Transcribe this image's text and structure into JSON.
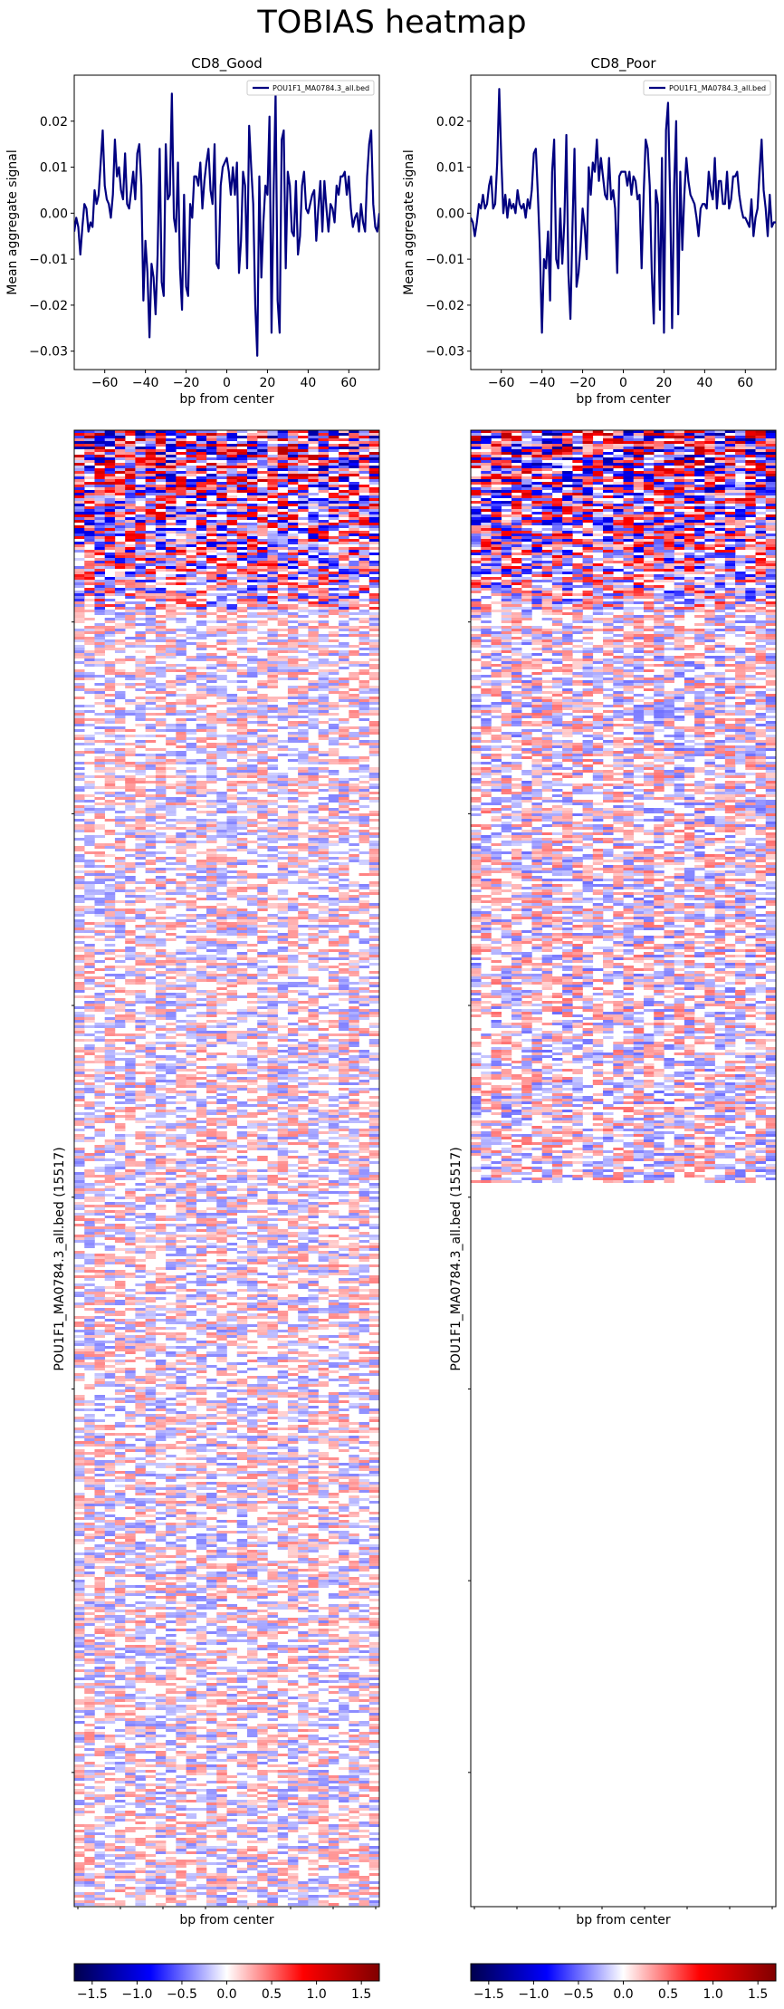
{
  "figure": {
    "title": "TOBIAS heatmap"
  },
  "chart_data": [
    {
      "type": "line",
      "title": "CD8_Good",
      "xlabel": "bp from center",
      "ylabel": "Mean aggregate signal",
      "xlim": [
        -75,
        75
      ],
      "ylim": [
        -0.034,
        0.03
      ],
      "xticks": [
        -60,
        -40,
        -20,
        0,
        20,
        40,
        60
      ],
      "yticks": [
        -0.03,
        -0.02,
        -0.01,
        0.0,
        0.01,
        0.02
      ],
      "ytick_labels": [
        "−0.03",
        "−0.02",
        "−0.01",
        "0.00",
        "0.01",
        "0.02"
      ],
      "xtick_labels": [
        "−60",
        "−40",
        "−20",
        "0",
        "20",
        "40",
        "60"
      ],
      "legend": "top-right",
      "series": [
        {
          "name": "POU1F1_MA0784.3_all.bed",
          "color": "#000080",
          "x": [
            -75,
            -74,
            -73,
            -72,
            -71,
            -70,
            -69,
            -68,
            -67,
            -66,
            -65,
            -64,
            -63,
            -62,
            -61,
            -60,
            -59,
            -58,
            -57,
            -56,
            -55,
            -54,
            -53,
            -52,
            -51,
            -50,
            -49,
            -48,
            -47,
            -46,
            -45,
            -44,
            -43,
            -42,
            -41,
            -40,
            -39,
            -38,
            -37,
            -36,
            -35,
            -34,
            -33,
            -32,
            -31,
            -30,
            -29,
            -28,
            -27,
            -26,
            -25,
            -24,
            -23,
            -22,
            -21,
            -20,
            -19,
            -18,
            -17,
            -16,
            -15,
            -14,
            -13,
            -12,
            -11,
            -10,
            -9,
            -8,
            -7,
            -6,
            -5,
            -4,
            -3,
            -2,
            -1,
            0,
            1,
            2,
            3,
            4,
            5,
            6,
            7,
            8,
            9,
            10,
            11,
            12,
            13,
            14,
            15,
            16,
            17,
            18,
            19,
            20,
            21,
            22,
            23,
            24,
            25,
            26,
            27,
            28,
            29,
            30,
            31,
            32,
            33,
            34,
            35,
            36,
            37,
            38,
            39,
            40,
            41,
            42,
            43,
            44,
            45,
            46,
            47,
            48,
            49,
            50,
            51,
            52,
            53,
            54,
            55,
            56,
            57,
            58,
            59,
            60,
            61,
            62,
            63,
            64,
            65,
            66,
            67,
            68,
            69,
            70,
            71,
            72,
            73,
            74,
            75
          ],
          "y": [
            -0.004,
            -0.001,
            -0.003,
            -0.009,
            -0.003,
            0.002,
            0.001,
            -0.004,
            -0.002,
            -0.003,
            0.005,
            0.002,
            0.004,
            0.011,
            0.018,
            0.006,
            0.003,
            0.002,
            -0.001,
            0.004,
            0.016,
            0.008,
            0.01,
            0.005,
            0.003,
            0.013,
            0.002,
            0.001,
            0.005,
            0.009,
            0.003,
            0.013,
            0.015,
            0.006,
            -0.019,
            -0.006,
            -0.013,
            -0.027,
            -0.011,
            -0.014,
            -0.022,
            -0.009,
            0.014,
            -0.015,
            -0.018,
            0.015,
            0.003,
            0.004,
            0.026,
            -0.001,
            -0.004,
            0.011,
            -0.012,
            -0.021,
            0.004,
            -0.016,
            -0.018,
            0.002,
            -0.001,
            0.008,
            0.008,
            0.006,
            0.011,
            0.001,
            0.007,
            0.011,
            0.014,
            0.005,
            0.002,
            0.015,
            -0.011,
            -0.012,
            0.006,
            0.01,
            0.011,
            0.012,
            0.009,
            0.004,
            0.01,
            0.004,
            0.011,
            -0.013,
            -0.006,
            0.009,
            0.006,
            -0.012,
            0.019,
            0.01,
            0.002,
            -0.02,
            -0.031,
            0.008,
            -0.014,
            -0.002,
            0.006,
            0.004,
            0.021,
            -0.026,
            0.004,
            0.026,
            -0.019,
            -0.026,
            0.016,
            0.018,
            -0.012,
            0.009,
            0.006,
            -0.004,
            -0.005,
            0.007,
            -0.009,
            -0.005,
            0.006,
            0.009,
            0.001,
            0.0,
            0.002,
            0.004,
            0.005,
            -0.006,
            0.001,
            0.007,
            -0.004,
            0.007,
            0.001,
            -0.004,
            0.002,
            0.001,
            -0.002,
            0.006,
            0.004,
            0.008,
            0.008,
            0.009,
            0.004,
            0.008,
            0.001,
            -0.003,
            -0.001,
            0.0,
            -0.004,
            0.002,
            -0.002,
            -0.004,
            0.008,
            0.015,
            0.018,
            0.002,
            -0.003,
            -0.004,
            0.0
          ]
        }
      ]
    },
    {
      "type": "line",
      "title": "CD8_Poor",
      "xlabel": "bp from center",
      "ylabel": "Mean aggregate signal",
      "xlim": [
        -75,
        75
      ],
      "ylim": [
        -0.034,
        0.03
      ],
      "xticks": [
        -60,
        -40,
        -20,
        0,
        20,
        40,
        60
      ],
      "yticks": [
        -0.03,
        -0.02,
        -0.01,
        0.0,
        0.01,
        0.02
      ],
      "ytick_labels": [
        "−0.03",
        "−0.02",
        "−0.01",
        "0.00",
        "0.01",
        "0.02"
      ],
      "xtick_labels": [
        "−60",
        "−40",
        "−20",
        "0",
        "20",
        "40",
        "60"
      ],
      "legend": "top-right",
      "series": [
        {
          "name": "POU1F1_MA0784.3_all.bed",
          "color": "#000080",
          "x": [
            -75,
            -74,
            -73,
            -72,
            -71,
            -70,
            -69,
            -68,
            -67,
            -66,
            -65,
            -64,
            -63,
            -62,
            -61,
            -60,
            -59,
            -58,
            -57,
            -56,
            -55,
            -54,
            -53,
            -52,
            -51,
            -50,
            -49,
            -48,
            -47,
            -46,
            -45,
            -44,
            -43,
            -42,
            -41,
            -40,
            -39,
            -38,
            -37,
            -36,
            -35,
            -34,
            -33,
            -32,
            -31,
            -30,
            -29,
            -28,
            -27,
            -26,
            -25,
            -24,
            -23,
            -22,
            -21,
            -20,
            -19,
            -18,
            -17,
            -16,
            -15,
            -14,
            -13,
            -12,
            -11,
            -10,
            -9,
            -8,
            -7,
            -6,
            -5,
            -4,
            -3,
            -2,
            -1,
            0,
            1,
            2,
            3,
            4,
            5,
            6,
            7,
            8,
            9,
            10,
            11,
            12,
            13,
            14,
            15,
            16,
            17,
            18,
            19,
            20,
            21,
            22,
            23,
            24,
            25,
            26,
            27,
            28,
            29,
            30,
            31,
            32,
            33,
            34,
            35,
            36,
            37,
            38,
            39,
            40,
            41,
            42,
            43,
            44,
            45,
            46,
            47,
            48,
            49,
            50,
            51,
            52,
            53,
            54,
            55,
            56,
            57,
            58,
            59,
            60,
            61,
            62,
            63,
            64,
            65,
            66,
            67,
            68,
            69,
            70,
            71,
            72,
            73,
            74,
            75
          ],
          "y": [
            -0.001,
            -0.002,
            -0.005,
            -0.002,
            0.002,
            0.001,
            0.004,
            0.001,
            0.002,
            0.006,
            0.008,
            0.001,
            0.002,
            0.011,
            0.027,
            0.012,
            0.0,
            0.004,
            -0.001,
            0.003,
            0.001,
            0.002,
            0.0,
            0.005,
            0.002,
            0.001,
            0.002,
            -0.001,
            0.003,
            0.001,
            0.005,
            0.013,
            0.014,
            0.004,
            -0.008,
            -0.026,
            -0.01,
            -0.012,
            -0.004,
            -0.019,
            0.009,
            0.016,
            -0.01,
            -0.012,
            0.001,
            -0.011,
            -0.002,
            0.017,
            -0.013,
            -0.023,
            -0.003,
            0.014,
            -0.016,
            -0.013,
            -0.007,
            0.001,
            -0.003,
            -0.01,
            0.01,
            0.004,
            0.011,
            0.009,
            0.016,
            0.007,
            0.012,
            0.008,
            0.004,
            0.003,
            0.012,
            0.003,
            0.005,
            0.001,
            -0.013,
            0.008,
            0.009,
            0.009,
            0.009,
            0.006,
            0.009,
            0.004,
            0.008,
            0.007,
            0.003,
            0.004,
            -0.012,
            0.004,
            0.016,
            0.014,
            0.006,
            -0.013,
            -0.024,
            0.005,
            0.002,
            -0.021,
            0.012,
            -0.026,
            0.018,
            0.024,
            0.004,
            -0.025,
            0.006,
            0.02,
            -0.022,
            0.009,
            -0.008,
            0.004,
            0.012,
            0.007,
            0.004,
            0.003,
            0.002,
            -0.001,
            -0.005,
            0.001,
            0.002,
            0.002,
            0.001,
            0.009,
            0.005,
            0.003,
            0.012,
            0.001,
            0.007,
            0.007,
            0.002,
            0.002,
            0.009,
            0.001,
            0.003,
            0.008,
            0.008,
            0.009,
            0.004,
            0.001,
            -0.001,
            -0.001,
            -0.002,
            -0.003,
            0.003,
            -0.005,
            -0.001,
            0.001,
            0.009,
            0.016,
            0.005,
            0.001,
            -0.005,
            0.004,
            -0.003,
            -0.002,
            -0.002
          ]
        }
      ]
    },
    {
      "type": "heatmap",
      "xlabel": "bp from center",
      "ylabel": "POU1F1_MA0784.3_all.bed (15517)",
      "rows": 15517,
      "colormap": "seismic",
      "vmin": -1.7,
      "vmax": 1.7,
      "colorbar_ticks": [
        -1.5,
        -1.0,
        -0.5,
        0.0,
        0.5,
        1.0,
        1.5
      ],
      "colorbar_tick_labels": [
        "−1.5",
        "−1.0",
        "−0.5",
        "0.0",
        "0.5",
        "1.0",
        "1.5"
      ],
      "blocks": [
        {
          "rows_fraction": [
            0.0,
            0.12
          ],
          "mean_abs": 0.8
        },
        {
          "rows_fraction": [
            0.12,
            0.51
          ],
          "mean_abs": 0.3
        },
        {
          "rows_fraction": [
            0.51,
            1.0
          ],
          "mean_abs": 0.3
        }
      ]
    },
    {
      "type": "heatmap",
      "xlabel": "bp from center",
      "ylabel": "POU1F1_MA0784.3_all.bed (15517)",
      "rows": 15517,
      "colormap": "seismic",
      "vmin": -1.7,
      "vmax": 1.7,
      "colorbar_ticks": [
        -1.5,
        -1.0,
        -0.5,
        0.0,
        0.5,
        1.0,
        1.5
      ],
      "colorbar_tick_labels": [
        "−1.5",
        "−1.0",
        "−0.5",
        "0.0",
        "0.5",
        "1.0",
        "1.5"
      ],
      "blocks": [
        {
          "rows_fraction": [
            0.0,
            0.12
          ],
          "mean_abs": 0.8
        },
        {
          "rows_fraction": [
            0.12,
            0.51
          ],
          "mean_abs": 0.35
        },
        {
          "rows_fraction": [
            0.51,
            1.0
          ],
          "mean_abs": 0.02
        }
      ]
    }
  ]
}
